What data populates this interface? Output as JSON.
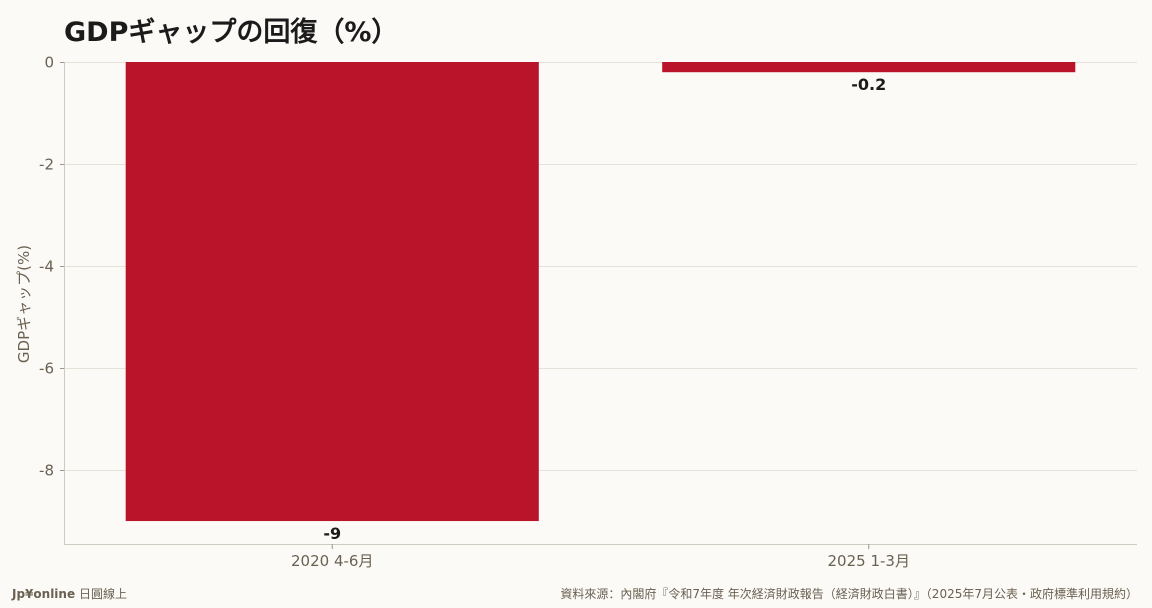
{
  "header": {
    "title": "GDPギャップの回復（%）"
  },
  "chart_data": {
    "type": "bar",
    "title": "GDPギャップの回復（%）",
    "categories": [
      "2020 4-6月",
      "2025 1-3月"
    ],
    "values": [
      -9,
      -0.2
    ],
    "data_labels": [
      "-9",
      "-0.2"
    ],
    "xlabel": "",
    "ylabel": "GDPギャップ(%)",
    "ylim": [
      -9.45,
      0
    ],
    "yticks": [
      0,
      -2,
      -4,
      -6,
      -8
    ],
    "ytick_labels": [
      "0",
      "-2",
      "-4",
      "-6",
      "-8"
    ],
    "grid": true,
    "bar_color": "#b91429"
  },
  "footer": {
    "brand": "Jp¥online",
    "brand_suffix": "日圓線上",
    "source": "資料來源：內閣府『令和7年度 年次経済財政報告（経済財政白書）』（2025年7月公表・政府標準利用規約）"
  }
}
